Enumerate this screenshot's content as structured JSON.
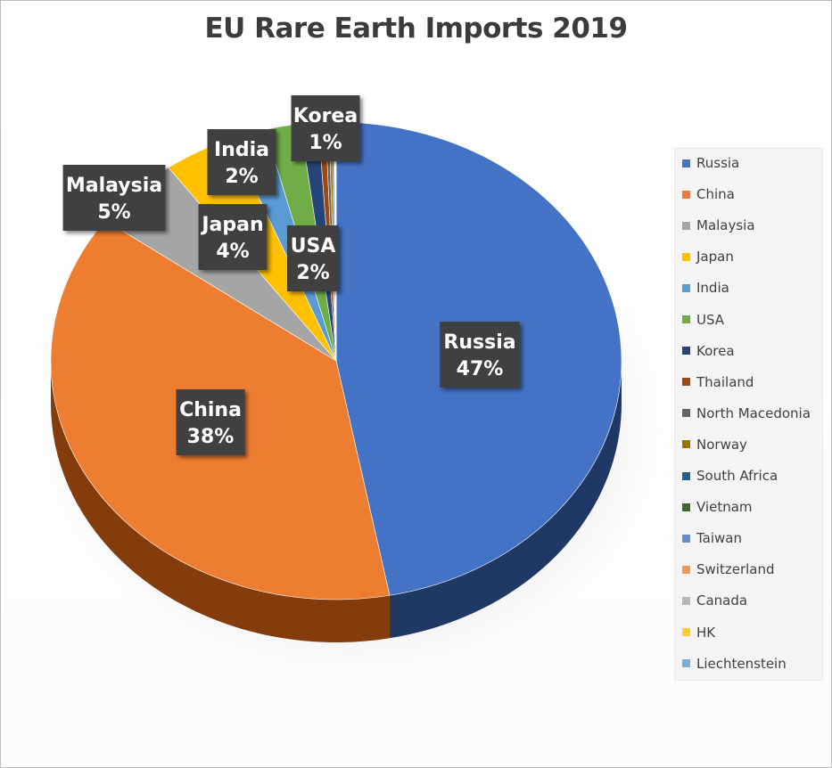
{
  "chart_data": {
    "type": "pie",
    "title": "EU Rare Earth Imports 2019",
    "legend_position": "right",
    "style": "3d",
    "slices": [
      {
        "name": "Russia",
        "value": 47,
        "label": "Russia\n47%",
        "color": "#4472c4",
        "side_color": "#1f3864"
      },
      {
        "name": "China",
        "value": 38,
        "label": "China\n38%",
        "color": "#ed7d31",
        "side_color": "#843c0c"
      },
      {
        "name": "Malaysia",
        "value": 5,
        "label": "Malaysia\n5%",
        "color": "#a5a5a5",
        "side_color": "#6b6b6b"
      },
      {
        "name": "Japan",
        "value": 4,
        "label": "Japan\n4%",
        "color": "#ffc000",
        "side_color": "#a67c00"
      },
      {
        "name": "India",
        "value": 2,
        "label": "India\n2%",
        "color": "#5b9bd5",
        "side_color": "#2e5e8c"
      },
      {
        "name": "USA",
        "value": 2,
        "label": "USA\n2%",
        "color": "#70ad47",
        "side_color": "#3f6b27"
      },
      {
        "name": "Korea",
        "value": 1,
        "label": "Korea\n1%",
        "color": "#264478",
        "side_color": "#152644"
      },
      {
        "name": "Thailand",
        "value": 0.4,
        "label": "",
        "color": "#9e480e",
        "side_color": "#5c2a08"
      },
      {
        "name": "North Macedonia",
        "value": 0.2,
        "label": "",
        "color": "#636363",
        "side_color": "#3a3a3a"
      },
      {
        "name": "Norway",
        "value": 0.15,
        "label": "",
        "color": "#997300",
        "side_color": "#5a4400"
      },
      {
        "name": "South Africa",
        "value": 0.1,
        "label": "",
        "color": "#255e91",
        "side_color": "#143553"
      },
      {
        "name": "Vietnam",
        "value": 0.05,
        "label": "",
        "color": "#43682b",
        "side_color": "#263c18"
      },
      {
        "name": "Taiwan",
        "value": 0.03,
        "label": "",
        "color": "#698ed0",
        "side_color": "#3a5380"
      },
      {
        "name": "Switzerland",
        "value": 0.02,
        "label": "",
        "color": "#f1975a",
        "side_color": "#8f5530"
      },
      {
        "name": "Canada",
        "value": 0.02,
        "label": "",
        "color": "#b7b7b7",
        "side_color": "#6e6e6e"
      },
      {
        "name": "HK",
        "value": 0.02,
        "label": "",
        "color": "#ffcd33",
        "side_color": "#a68520"
      },
      {
        "name": "Liechtenstein",
        "value": 0.01,
        "label": "",
        "color": "#7cafdd",
        "side_color": "#456a8c"
      }
    ]
  }
}
